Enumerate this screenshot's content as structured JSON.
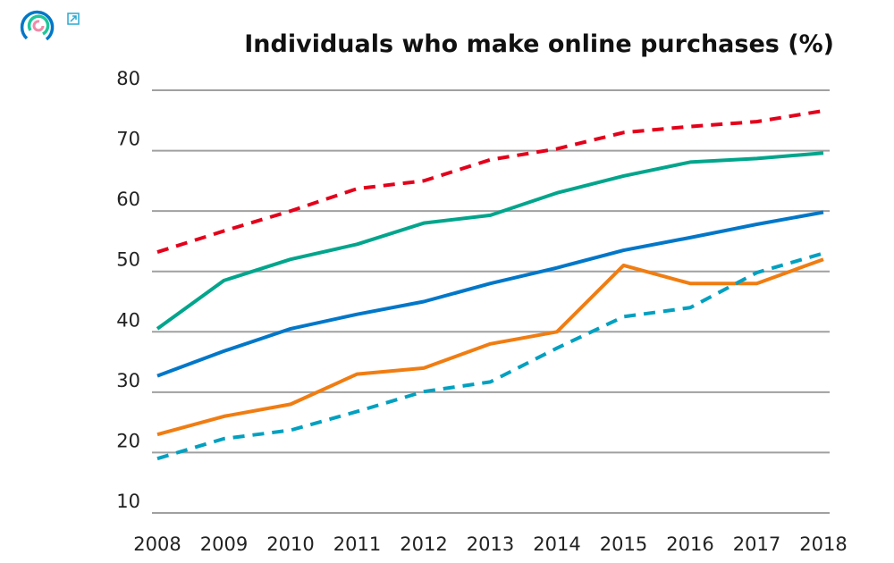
{
  "header": {
    "logo_icon": "circular-rings-logo",
    "expand_icon": "open-external-icon"
  },
  "chart_data": {
    "type": "line",
    "title": "Individuals who make online purchases (%)",
    "xlabel": "",
    "ylabel": "",
    "x": [
      2008,
      2009,
      2010,
      2011,
      2012,
      2013,
      2014,
      2015,
      2016,
      2017,
      2018
    ],
    "ylim": [
      10,
      80
    ],
    "yticks": [
      10,
      20,
      30,
      40,
      50,
      60,
      70,
      80
    ],
    "grid": "horizontal",
    "legend": "none",
    "series": [
      {
        "color": "#e3001b",
        "dash": true,
        "values": [
          53.2,
          56.7,
          60,
          63.7,
          65,
          68.5,
          70.3,
          73,
          74,
          74.8,
          76.6
        ]
      },
      {
        "color": "#00a58c",
        "dash": false,
        "values": [
          40.5,
          48.5,
          52,
          54.5,
          58,
          59.3,
          63,
          65.8,
          68.1,
          68.7,
          69.6
        ]
      },
      {
        "color": "#0077c8",
        "dash": false,
        "values": [
          32.7,
          36.8,
          40.5,
          42.9,
          45,
          48,
          50.6,
          53.5,
          55.6,
          57.8,
          59.8
        ]
      },
      {
        "color": "#f07d12",
        "dash": false,
        "values": [
          23,
          26,
          28,
          33,
          34,
          38,
          40,
          51,
          48,
          48,
          52
        ]
      },
      {
        "color": "#00a0c0",
        "dash": true,
        "values": [
          19,
          22.3,
          23.7,
          26.8,
          30.1,
          31.7,
          37.3,
          42.5,
          44,
          49.8,
          53
        ]
      }
    ]
  }
}
